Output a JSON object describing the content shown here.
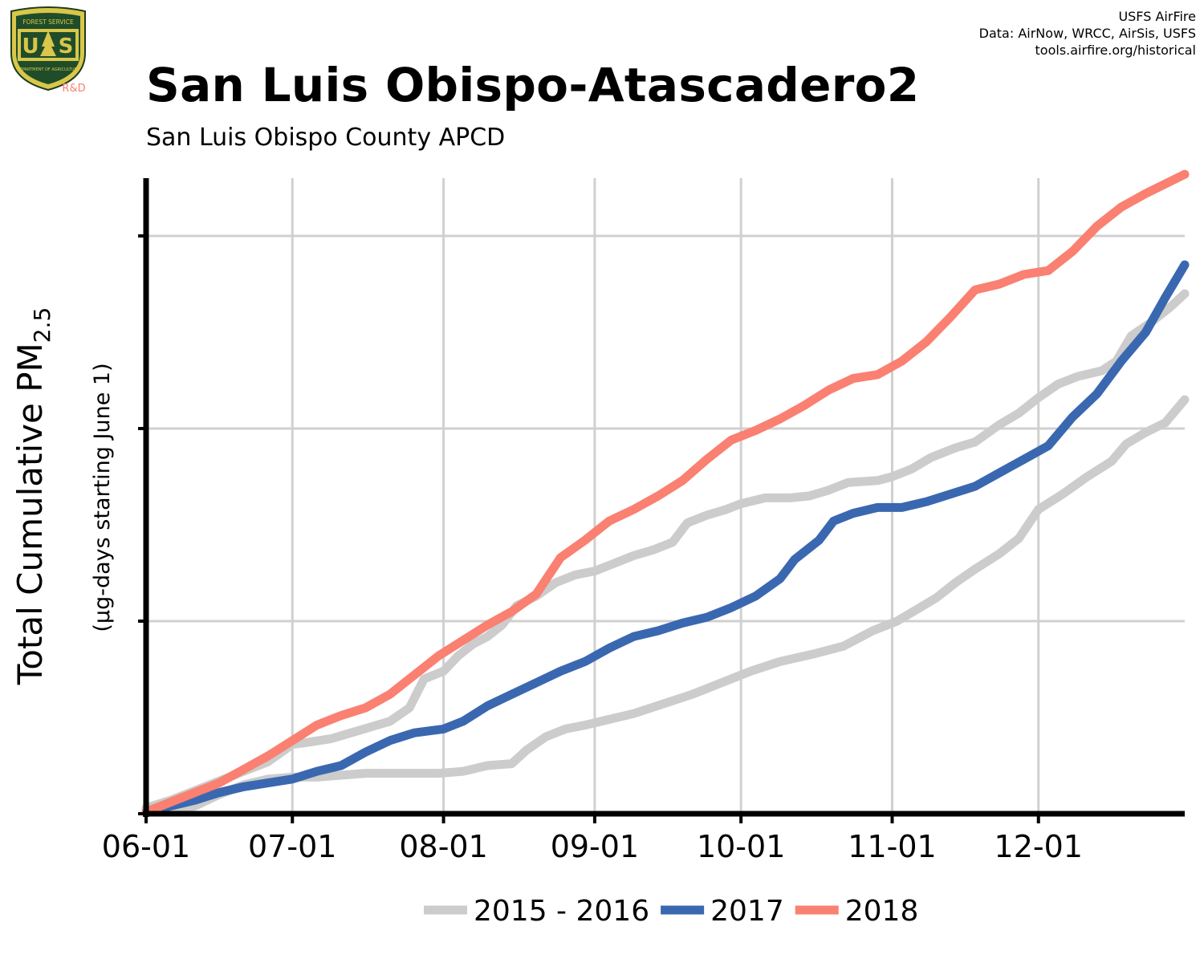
{
  "header": {
    "title": "San Luis Obispo-Atascadero2",
    "subtitle": "San Luis Obispo County APCD",
    "credits": [
      "USFS AirFire",
      "Data: AirNow, WRCC, AirSis, USFS",
      "tools.airfire.org/historical"
    ]
  },
  "logo": {
    "top_text": "FOREST SERVICE",
    "bottom_text": "DEPARTMENT OF AGRICULTURE",
    "letters": "U S",
    "rd": "R&D"
  },
  "chart_data": {
    "type": "line",
    "ylabel_main": "Total Cumulative PM",
    "ylabel_sub": "2.5",
    "ylabel_units": "(µg-days starting June 1)",
    "x_tick_labels": [
      "06-01",
      "07-01",
      "08-01",
      "09-01",
      "10-01",
      "11-01",
      "12-01"
    ],
    "x_tick_days": [
      0,
      30,
      61,
      92,
      122,
      153,
      183
    ],
    "xlim": [
      0,
      213
    ],
    "ylim": [
      0,
      3.3
    ],
    "y_ticks": [
      0,
      1,
      2,
      3
    ],
    "y_tick_labels_shown": false,
    "grid": true,
    "legend_position": "bottom",
    "series": [
      {
        "name": "2015 - 2016",
        "color": "#cccccc",
        "points": [
          [
            0,
            0.03
          ],
          [
            5,
            0.07
          ],
          [
            10,
            0.12
          ],
          [
            15,
            0.17
          ],
          [
            20,
            0.22
          ],
          [
            25,
            0.27
          ],
          [
            30,
            0.36
          ],
          [
            33,
            0.37
          ],
          [
            38,
            0.39
          ],
          [
            42,
            0.42
          ],
          [
            46,
            0.45
          ],
          [
            50,
            0.48
          ],
          [
            54,
            0.55
          ],
          [
            57,
            0.7
          ],
          [
            61,
            0.74
          ],
          [
            64,
            0.82
          ],
          [
            67,
            0.88
          ],
          [
            70,
            0.92
          ],
          [
            73,
            0.98
          ],
          [
            76,
            1.08
          ],
          [
            80,
            1.13
          ],
          [
            84,
            1.2
          ],
          [
            88,
            1.24
          ],
          [
            92,
            1.26
          ],
          [
            96,
            1.3
          ],
          [
            100,
            1.34
          ],
          [
            104,
            1.37
          ],
          [
            108,
            1.41
          ],
          [
            111,
            1.51
          ],
          [
            115,
            1.55
          ],
          [
            119,
            1.58
          ],
          [
            122,
            1.61
          ],
          [
            127,
            1.64
          ],
          [
            132,
            1.64
          ],
          [
            136,
            1.65
          ],
          [
            140,
            1.68
          ],
          [
            144,
            1.72
          ],
          [
            150,
            1.73
          ],
          [
            153,
            1.75
          ],
          [
            157,
            1.79
          ],
          [
            161,
            1.85
          ],
          [
            166,
            1.9
          ],
          [
            170,
            1.93
          ],
          [
            175,
            2.02
          ],
          [
            179,
            2.08
          ],
          [
            183,
            2.16
          ],
          [
            187,
            2.23
          ],
          [
            191,
            2.27
          ],
          [
            196,
            2.3
          ],
          [
            199,
            2.35
          ],
          [
            202,
            2.48
          ],
          [
            206,
            2.55
          ],
          [
            210,
            2.63
          ],
          [
            213,
            2.7
          ]
        ]
      },
      {
        "name": "2015 - 2016",
        "color": "#cccccc",
        "points": [
          [
            0,
            0.01
          ],
          [
            5,
            0.02
          ],
          [
            10,
            0.04
          ],
          [
            15,
            0.1
          ],
          [
            20,
            0.15
          ],
          [
            25,
            0.18
          ],
          [
            30,
            0.19
          ],
          [
            35,
            0.19
          ],
          [
            40,
            0.2
          ],
          [
            45,
            0.21
          ],
          [
            50,
            0.21
          ],
          [
            55,
            0.21
          ],
          [
            60,
            0.21
          ],
          [
            65,
            0.22
          ],
          [
            70,
            0.25
          ],
          [
            75,
            0.26
          ],
          [
            78,
            0.33
          ],
          [
            82,
            0.4
          ],
          [
            86,
            0.44
          ],
          [
            90,
            0.46
          ],
          [
            95,
            0.49
          ],
          [
            100,
            0.52
          ],
          [
            106,
            0.57
          ],
          [
            112,
            0.62
          ],
          [
            118,
            0.68
          ],
          [
            124,
            0.74
          ],
          [
            130,
            0.79
          ],
          [
            137,
            0.83
          ],
          [
            143,
            0.87
          ],
          [
            149,
            0.95
          ],
          [
            154,
            1.0
          ],
          [
            158,
            1.06
          ],
          [
            162,
            1.12
          ],
          [
            166,
            1.2
          ],
          [
            170,
            1.27
          ],
          [
            175,
            1.35
          ],
          [
            179,
            1.43
          ],
          [
            183,
            1.58
          ],
          [
            188,
            1.66
          ],
          [
            193,
            1.75
          ],
          [
            198,
            1.83
          ],
          [
            201,
            1.92
          ],
          [
            205,
            1.98
          ],
          [
            209,
            2.03
          ],
          [
            213,
            2.15
          ]
        ]
      },
      {
        "name": "2017",
        "color": "#3a68b0",
        "points": [
          [
            0,
            0.01
          ],
          [
            5,
            0.04
          ],
          [
            10,
            0.07
          ],
          [
            15,
            0.11
          ],
          [
            20,
            0.14
          ],
          [
            25,
            0.16
          ],
          [
            30,
            0.18
          ],
          [
            35,
            0.22
          ],
          [
            40,
            0.25
          ],
          [
            45,
            0.32
          ],
          [
            50,
            0.38
          ],
          [
            55,
            0.42
          ],
          [
            61,
            0.44
          ],
          [
            65,
            0.48
          ],
          [
            70,
            0.56
          ],
          [
            75,
            0.62
          ],
          [
            80,
            0.68
          ],
          [
            85,
            0.74
          ],
          [
            90,
            0.79
          ],
          [
            95,
            0.86
          ],
          [
            100,
            0.92
          ],
          [
            105,
            0.95
          ],
          [
            110,
            0.99
          ],
          [
            115,
            1.02
          ],
          [
            120,
            1.07
          ],
          [
            125,
            1.13
          ],
          [
            130,
            1.22
          ],
          [
            133,
            1.32
          ],
          [
            138,
            1.42
          ],
          [
            141,
            1.52
          ],
          [
            145,
            1.56
          ],
          [
            150,
            1.59
          ],
          [
            155,
            1.59
          ],
          [
            160,
            1.62
          ],
          [
            165,
            1.66
          ],
          [
            170,
            1.7
          ],
          [
            175,
            1.77
          ],
          [
            180,
            1.84
          ],
          [
            185,
            1.91
          ],
          [
            190,
            2.06
          ],
          [
            195,
            2.18
          ],
          [
            200,
            2.35
          ],
          [
            205,
            2.5
          ],
          [
            209,
            2.68
          ],
          [
            213,
            2.85
          ]
        ]
      },
      {
        "name": "2018",
        "color": "#fa8072",
        "points": [
          [
            0,
            0.01
          ],
          [
            5,
            0.06
          ],
          [
            10,
            0.11
          ],
          [
            15,
            0.16
          ],
          [
            20,
            0.23
          ],
          [
            25,
            0.3
          ],
          [
            30,
            0.38
          ],
          [
            35,
            0.46
          ],
          [
            40,
            0.51
          ],
          [
            45,
            0.55
          ],
          [
            50,
            0.62
          ],
          [
            55,
            0.72
          ],
          [
            60,
            0.82
          ],
          [
            65,
            0.9
          ],
          [
            70,
            0.98
          ],
          [
            75,
            1.05
          ],
          [
            80,
            1.14
          ],
          [
            85,
            1.33
          ],
          [
            90,
            1.42
          ],
          [
            95,
            1.52
          ],
          [
            100,
            1.58
          ],
          [
            105,
            1.65
          ],
          [
            110,
            1.73
          ],
          [
            115,
            1.84
          ],
          [
            120,
            1.94
          ],
          [
            125,
            1.99
          ],
          [
            130,
            2.05
          ],
          [
            135,
            2.12
          ],
          [
            140,
            2.2
          ],
          [
            145,
            2.26
          ],
          [
            150,
            2.28
          ],
          [
            155,
            2.35
          ],
          [
            160,
            2.45
          ],
          [
            165,
            2.58
          ],
          [
            170,
            2.72
          ],
          [
            175,
            2.75
          ],
          [
            180,
            2.8
          ],
          [
            185,
            2.82
          ],
          [
            190,
            2.92
          ],
          [
            195,
            3.05
          ],
          [
            200,
            3.15
          ],
          [
            205,
            3.22
          ],
          [
            213,
            3.32
          ]
        ]
      }
    ],
    "legend": [
      {
        "label": "2015 - 2016",
        "color": "#cccccc"
      },
      {
        "label": "2017",
        "color": "#3a68b0"
      },
      {
        "label": "2018",
        "color": "#fa8072"
      }
    ]
  }
}
